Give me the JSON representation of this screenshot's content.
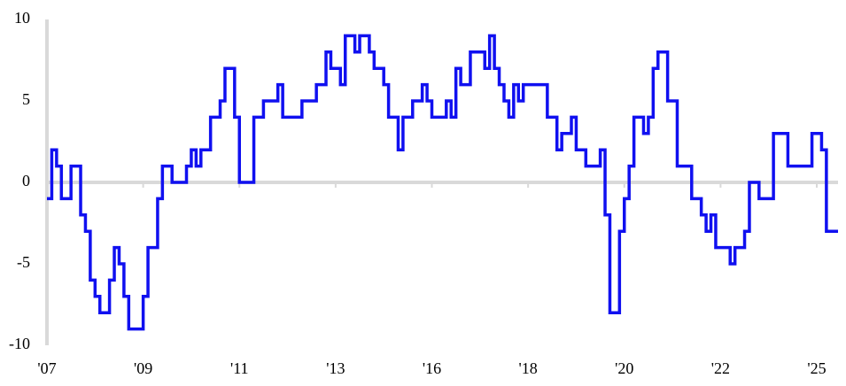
{
  "chart_data": {
    "type": "line",
    "step": true,
    "categories": [
      "'07",
      null,
      null,
      null,
      null,
      null,
      null,
      null,
      null,
      null,
      null,
      null,
      null,
      null,
      null,
      null,
      null,
      null,
      null,
      null,
      "'09",
      null,
      null,
      null,
      null,
      null,
      null,
      null,
      null,
      null,
      null,
      null,
      null,
      null,
      null,
      null,
      null,
      null,
      null,
      null,
      "'11",
      null,
      null,
      null,
      null,
      null,
      null,
      null,
      null,
      null,
      null,
      null,
      null,
      null,
      null,
      null,
      null,
      null,
      null,
      null,
      "'13",
      null,
      null,
      null,
      null,
      null,
      null,
      null,
      null,
      null,
      null,
      null,
      null,
      null,
      null,
      null,
      null,
      null,
      null,
      null,
      "'16",
      null,
      null,
      null,
      null,
      null,
      null,
      null,
      null,
      null,
      null,
      null,
      null,
      null,
      null,
      null,
      null,
      null,
      null,
      null,
      "'18",
      null,
      null,
      null,
      null,
      null,
      null,
      null,
      null,
      null,
      null,
      null,
      null,
      null,
      null,
      null,
      null,
      null,
      null,
      null,
      "'20",
      null,
      null,
      null,
      null,
      null,
      null,
      null,
      null,
      null,
      null,
      null,
      null,
      null,
      null,
      null,
      null,
      null,
      null,
      null,
      "'22",
      null,
      null,
      null,
      null,
      null,
      null,
      null,
      null,
      null,
      null,
      null,
      null,
      null,
      null,
      null,
      null,
      null,
      null,
      null,
      "'25",
      null,
      null,
      null,
      null
    ],
    "series": [
      {
        "color": "#1010f0",
        "values": [
          -1,
          2,
          1,
          -1,
          -1,
          1,
          1,
          -2,
          -3,
          -6,
          -7,
          -8,
          -8,
          -6,
          -4,
          -5,
          -7,
          -9,
          -9,
          -9,
          -7,
          -4,
          -4,
          -1,
          1,
          1,
          0,
          0,
          0,
          1,
          2,
          1,
          2,
          2,
          4,
          4,
          5,
          7,
          7,
          4,
          0,
          0,
          0,
          4,
          4,
          5,
          5,
          5,
          6,
          4,
          4,
          4,
          4,
          5,
          5,
          5,
          6,
          6,
          8,
          7,
          7,
          6,
          9,
          9,
          8,
          9,
          9,
          8,
          7,
          7,
          6,
          4,
          4,
          2,
          4,
          4,
          5,
          5,
          6,
          5,
          4,
          4,
          4,
          5,
          4,
          7,
          6,
          6,
          8,
          8,
          8,
          7,
          9,
          7,
          6,
          5,
          4,
          6,
          5,
          6,
          6,
          6,
          6,
          6,
          4,
          4,
          2,
          3,
          3,
          4,
          2,
          2,
          1,
          1,
          1,
          2,
          -2,
          -8,
          -8,
          -3,
          -1,
          1,
          4,
          4,
          3,
          4,
          7,
          8,
          8,
          5,
          5,
          1,
          1,
          1,
          -1,
          -1,
          -2,
          -3,
          -2,
          -4,
          -4,
          -4,
          -5,
          -4,
          -4,
          -3,
          0,
          0,
          -1,
          -1,
          -1,
          3,
          3,
          3,
          1,
          1,
          1,
          1,
          1,
          3,
          3,
          2,
          -3,
          -3,
          -3
        ]
      }
    ],
    "ylim": [
      -10,
      10
    ],
    "yticks": [
      -10,
      -5,
      0,
      5,
      10
    ]
  }
}
